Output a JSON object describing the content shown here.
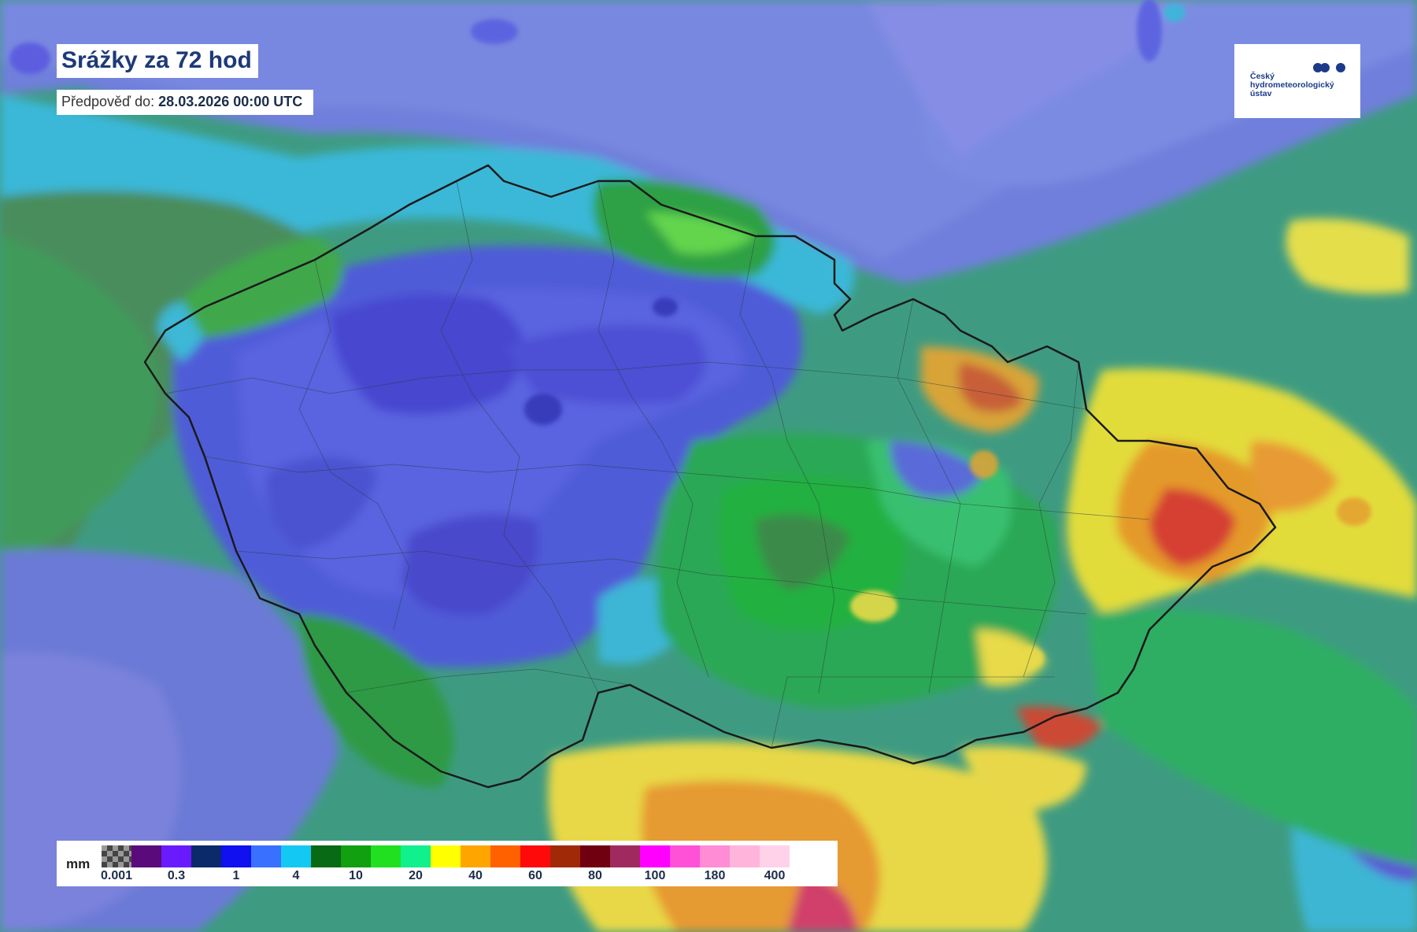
{
  "header": {
    "title": "Srážky za 72 hod",
    "forecast_label": "Předpověď do:",
    "forecast_value": "28.03.2026 00:00 UTC"
  },
  "logo": {
    "text": "Český\nhydrometeorologický\nústav",
    "icon": "chmi-logo-icon"
  },
  "legend": {
    "unit": "mm",
    "swatches": [
      "pattern",
      "#5a0a7a",
      "#6a1aff",
      "#0a2a6a",
      "#1010f0",
      "#3a70ff",
      "#14c8f4",
      "#086a14",
      "#10a010",
      "#20e020",
      "#10f08c",
      "#ffff00",
      "#ffa500",
      "#ff6000",
      "#ff0a0a",
      "#a02a08",
      "#700010",
      "#a02a60",
      "#ff00ff",
      "#ff50d8",
      "#ff8cd4",
      "#ffb4dc",
      "#ffd2ea"
    ],
    "ticks": [
      {
        "label": "0.001",
        "index": 0
      },
      {
        "label": "0.3",
        "index": 2
      },
      {
        "label": "1",
        "index": 4
      },
      {
        "label": "4",
        "index": 6
      },
      {
        "label": "10",
        "index": 8
      },
      {
        "label": "20",
        "index": 10
      },
      {
        "label": "40",
        "index": 12
      },
      {
        "label": "60",
        "index": 14
      },
      {
        "label": "80",
        "index": 16
      },
      {
        "label": "100",
        "index": 18
      },
      {
        "label": "180",
        "index": 20
      },
      {
        "label": "400",
        "index": 22
      }
    ]
  },
  "colors": {
    "title_text": "#1d3a78",
    "logo_text": "#1b3b8a"
  }
}
